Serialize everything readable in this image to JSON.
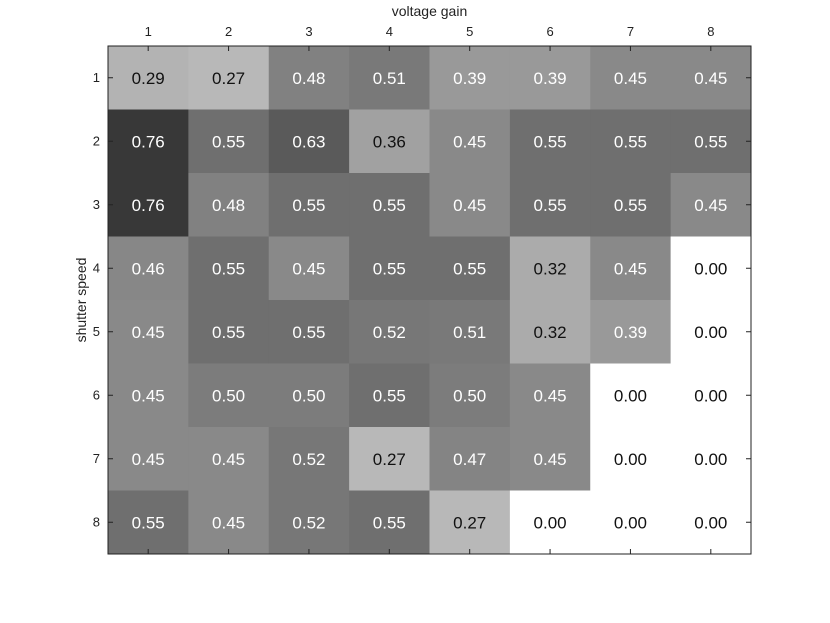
{
  "chart_data": {
    "type": "heatmap",
    "xlabel": "voltage gain",
    "ylabel": "shutter speed",
    "x_categories": [
      "1",
      "2",
      "3",
      "4",
      "5",
      "6",
      "7",
      "8"
    ],
    "y_categories": [
      "1",
      "2",
      "3",
      "4",
      "5",
      "6",
      "7",
      "8"
    ],
    "x_axis_position": "top",
    "colormap": "gray (high = dark, low = white)",
    "value_range": [
      0,
      0.76
    ],
    "values": [
      [
        "0.29",
        "0.27",
        "0.48",
        "0.51",
        "0.39",
        "0.39",
        "0.45",
        "0.45"
      ],
      [
        "0.76",
        "0.55",
        "0.63",
        "0.36",
        "0.45",
        "0.55",
        "0.55",
        "0.55"
      ],
      [
        "0.76",
        "0.48",
        "0.55",
        "0.55",
        "0.45",
        "0.55",
        "0.55",
        "0.45"
      ],
      [
        "0.46",
        "0.55",
        "0.45",
        "0.55",
        "0.55",
        "0.32",
        "0.45",
        "0.00"
      ],
      [
        "0.45",
        "0.55",
        "0.55",
        "0.52",
        "0.51",
        "0.32",
        "0.39",
        "0.00"
      ],
      [
        "0.45",
        "0.50",
        "0.50",
        "0.55",
        "0.50",
        "0.45",
        "0.00",
        "0.00"
      ],
      [
        "0.45",
        "0.45",
        "0.52",
        "0.27",
        "0.47",
        "0.45",
        "0.00",
        "0.00"
      ],
      [
        "0.55",
        "0.45",
        "0.52",
        "0.55",
        "0.27",
        "0.00",
        "0.00",
        "0.00"
      ]
    ]
  }
}
